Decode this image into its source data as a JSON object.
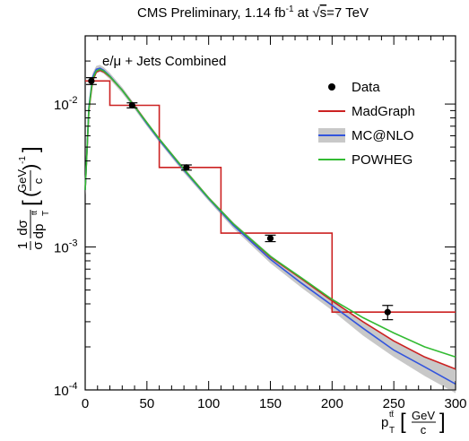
{
  "chart_data": {
    "type": "line",
    "title": {
      "prefix": "CMS Preliminary, 1.14 fb",
      "superscript": "-1",
      "middle": " at ",
      "sqrt_sign": "√",
      "sqrt_arg": "s",
      "suffix": "=7 TeV"
    },
    "annotation": "e/μ + Jets Combined",
    "xlabel": {
      "main": "p",
      "sup": "tt̄",
      "sub": "T",
      "unit_num": "GeV",
      "unit_den": "c"
    },
    "ylabel": {
      "one": "1",
      "sigma": "σ",
      "dsigma": "dσ",
      "dp": "dp",
      "sup": "tt̄",
      "sub": "T",
      "unit_num": "GeV",
      "unit_den": "c",
      "unit_exp": "-1"
    },
    "xlim": [
      0,
      300
    ],
    "ylim": [
      0.0001,
      0.03
    ],
    "yscale": "log",
    "grid": false,
    "legend_position": "top-right",
    "x_ticks": [
      0,
      50,
      100,
      150,
      200,
      250,
      300
    ],
    "y_ticks": [
      {
        "value": 0.0001,
        "base": "10",
        "exp": "-4"
      },
      {
        "value": 0.001,
        "base": "10",
        "exp": "-3"
      },
      {
        "value": 0.01,
        "base": "10",
        "exp": "-2"
      }
    ],
    "legend": [
      {
        "label": "Data",
        "kind": "marker",
        "color": "#000000"
      },
      {
        "label": "MadGraph",
        "kind": "line",
        "color": "#cc2222"
      },
      {
        "label": "MC@NLO",
        "kind": "band",
        "color": "#3355dd",
        "band_color": "#c8c8c8"
      },
      {
        "label": "POWHEG",
        "kind": "line",
        "color": "#33bb33"
      }
    ],
    "data_points": [
      {
        "x": 5,
        "y": 0.0145,
        "yerr": 0.0008
      },
      {
        "x": 38,
        "y": 0.0098,
        "yerr": 0.0004
      },
      {
        "x": 82,
        "y": 0.0036,
        "yerr": 0.00015
      },
      {
        "x": 150,
        "y": 0.00115,
        "yerr": 6e-05
      },
      {
        "x": 245,
        "y": 0.00035,
        "yerr": 4e-05
      }
    ],
    "histogram": {
      "name": "MadGraph",
      "color": "#cc2222",
      "bins": [
        {
          "lo": 0,
          "hi": 20,
          "y": 0.0145
        },
        {
          "lo": 20,
          "hi": 60,
          "y": 0.0098
        },
        {
          "lo": 60,
          "hi": 110,
          "y": 0.0036
        },
        {
          "lo": 110,
          "hi": 200,
          "y": 0.00125
        },
        {
          "lo": 200,
          "hi": 300,
          "y": 0.00035
        }
      ]
    },
    "series": [
      {
        "name": "MadGraph",
        "color": "#cc2222",
        "x": [
          0,
          3,
          6,
          9,
          12,
          15,
          20,
          30,
          40,
          50,
          60,
          80,
          100,
          120,
          150,
          175,
          200,
          225,
          250,
          275,
          300
        ],
        "y": [
          0.0025,
          0.009,
          0.0145,
          0.0167,
          0.0172,
          0.0168,
          0.0155,
          0.0125,
          0.0097,
          0.0074,
          0.0057,
          0.0035,
          0.0022,
          0.00145,
          0.00085,
          0.0006,
          0.00042,
          0.0003,
          0.00022,
          0.00017,
          0.00014
        ]
      },
      {
        "name": "MC@NLO",
        "color": "#3355dd",
        "x": [
          0,
          3,
          6,
          9,
          12,
          15,
          20,
          30,
          40,
          50,
          60,
          80,
          100,
          120,
          150,
          175,
          200,
          225,
          250,
          275,
          300
        ],
        "y": [
          0.0025,
          0.0095,
          0.0155,
          0.0175,
          0.0178,
          0.0172,
          0.0157,
          0.0125,
          0.0096,
          0.0073,
          0.0056,
          0.00345,
          0.00218,
          0.00142,
          0.00082,
          0.00056,
          0.00039,
          0.00027,
          0.00019,
          0.000145,
          0.00011
        ],
        "band_low": [
          0.0023,
          0.0088,
          0.0145,
          0.0165,
          0.0168,
          0.0163,
          0.0149,
          0.0119,
          0.0092,
          0.007,
          0.0054,
          0.0033,
          0.0021,
          0.00135,
          0.00077,
          0.00052,
          0.00036,
          0.00024,
          0.00017,
          0.000125,
          9.5e-05
        ],
        "band_high": [
          0.0027,
          0.0102,
          0.0165,
          0.0185,
          0.0188,
          0.0181,
          0.0165,
          0.0131,
          0.01,
          0.0076,
          0.0058,
          0.0036,
          0.00226,
          0.00149,
          0.00088,
          0.0006,
          0.00043,
          0.0003,
          0.00022,
          0.000172,
          0.000138
        ]
      },
      {
        "name": "POWHEG",
        "color": "#33bb33",
        "x": [
          0,
          3,
          6,
          9,
          12,
          15,
          20,
          30,
          40,
          50,
          60,
          80,
          100,
          120,
          150,
          175,
          200,
          225,
          250,
          275,
          300
        ],
        "y": [
          0.0025,
          0.0092,
          0.015,
          0.017,
          0.0175,
          0.017,
          0.0156,
          0.0125,
          0.0096,
          0.0074,
          0.0057,
          0.0035,
          0.0022,
          0.00145,
          0.00086,
          0.00061,
          0.00043,
          0.00032,
          0.00025,
          0.0002,
          0.00017
        ]
      }
    ]
  }
}
